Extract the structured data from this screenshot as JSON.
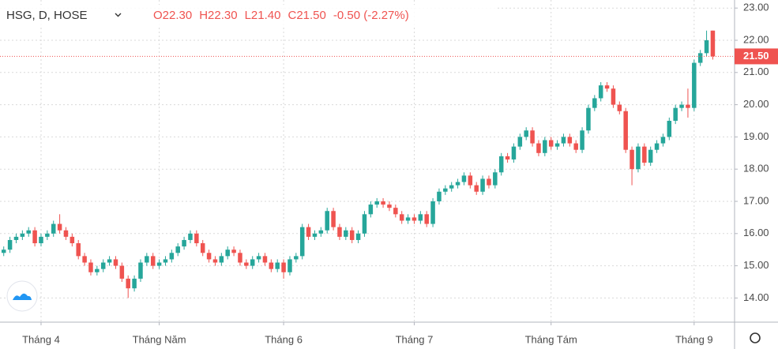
{
  "chart_data": {
    "type": "candlestick",
    "symbol": "HSG, D, HOSE",
    "legend": [
      "O22.30",
      "H22.30",
      "L21.40",
      "C21.50",
      "-0.50 (-2.27%)"
    ],
    "up_color": "#26a69a",
    "down_color": "#ef5350",
    "grid": true,
    "xlim": [
      -0.6,
      117.5
    ],
    "ylim": [
      13.25,
      23.25
    ],
    "yticks": [
      {
        "value": 14,
        "label": "14.00"
      },
      {
        "value": 15,
        "label": "15.00"
      },
      {
        "value": 16,
        "label": "16.00"
      },
      {
        "value": 17,
        "label": "17.00"
      },
      {
        "value": 18,
        "label": "18.00"
      },
      {
        "value": 19,
        "label": "19.00"
      },
      {
        "value": 20,
        "label": "20.00"
      },
      {
        "value": 21,
        "label": "21.00"
      },
      {
        "value": 22,
        "label": "22.00"
      },
      {
        "value": 23,
        "label": "23.00"
      }
    ],
    "xticks": [
      {
        "value": 6,
        "label": "Tháng 4"
      },
      {
        "value": 25,
        "label": "Tháng Năm"
      },
      {
        "value": 45,
        "label": "Tháng 6"
      },
      {
        "value": 66,
        "label": "Tháng 7"
      },
      {
        "value": 88,
        "label": "Tháng Tám"
      },
      {
        "value": 111,
        "label": "Tháng 9"
      }
    ],
    "last_price": {
      "value": 21.5,
      "label": "21.50"
    },
    "open": [
      15.4,
      15.5,
      15.8,
      15.9,
      16.0,
      16.1,
      15.7,
      15.9,
      16.0,
      16.3,
      16.1,
      15.9,
      15.7,
      15.3,
      15.1,
      14.8,
      14.9,
      15.1,
      15.2,
      15.0,
      14.6,
      14.3,
      14.6,
      15.1,
      15.3,
      15.0,
      15.1,
      15.2,
      15.4,
      15.6,
      15.8,
      16.0,
      15.7,
      15.4,
      15.2,
      15.1,
      15.3,
      15.5,
      15.4,
      15.1,
      15.0,
      15.2,
      15.3,
      15.1,
      14.9,
      15.1,
      14.8,
      15.2,
      15.3,
      16.2,
      15.9,
      16.0,
      16.1,
      16.7,
      16.2,
      15.9,
      16.1,
      15.8,
      16.0,
      16.6,
      16.9,
      17.0,
      16.9,
      16.8,
      16.6,
      16.4,
      16.5,
      16.4,
      16.6,
      16.3,
      17.0,
      17.3,
      17.4,
      17.5,
      17.6,
      17.8,
      17.5,
      17.3,
      17.7,
      17.5,
      17.9,
      18.4,
      18.3,
      18.7,
      19.0,
      19.2,
      18.8,
      18.5,
      18.9,
      18.7,
      18.8,
      19.0,
      18.8,
      18.6,
      19.2,
      19.9,
      20.2,
      20.6,
      20.5,
      20.0,
      19.8,
      18.6,
      18.0,
      18.7,
      18.2,
      18.6,
      18.8,
      19.0,
      19.5,
      19.9,
      20.0,
      19.9,
      21.3,
      21.6,
      22.3
    ],
    "high": [
      15.6,
      15.9,
      16.0,
      16.1,
      16.2,
      16.2,
      16.0,
      16.1,
      16.4,
      16.6,
      16.2,
      16.0,
      15.8,
      15.4,
      15.2,
      15.0,
      15.2,
      15.3,
      15.3,
      15.1,
      14.7,
      14.7,
      15.2,
      15.4,
      15.4,
      15.2,
      15.3,
      15.5,
      15.7,
      15.9,
      16.1,
      16.1,
      15.8,
      15.5,
      15.3,
      15.4,
      15.6,
      15.6,
      15.5,
      15.2,
      15.3,
      15.4,
      15.4,
      15.2,
      15.2,
      15.2,
      15.3,
      15.4,
      16.3,
      16.3,
      16.1,
      16.2,
      16.8,
      16.8,
      16.3,
      16.2,
      16.2,
      16.1,
      16.7,
      17.0,
      17.1,
      17.1,
      17.0,
      16.9,
      16.7,
      16.6,
      16.6,
      16.7,
      16.7,
      17.1,
      17.4,
      17.5,
      17.6,
      17.7,
      17.9,
      17.9,
      17.6,
      17.8,
      17.8,
      18.0,
      18.5,
      18.5,
      18.8,
      19.1,
      19.3,
      19.3,
      18.9,
      19.0,
      19.0,
      18.9,
      19.1,
      19.1,
      18.9,
      19.3,
      20.0,
      20.3,
      20.7,
      20.7,
      20.6,
      20.1,
      19.9,
      18.7,
      18.8,
      18.8,
      18.7,
      18.9,
      19.1,
      19.6,
      20.0,
      20.1,
      20.5,
      21.4,
      21.7,
      22.3,
      22.3
    ],
    "low": [
      15.3,
      15.4,
      15.7,
      15.8,
      15.9,
      15.6,
      15.6,
      15.8,
      15.9,
      16.0,
      15.8,
      15.6,
      15.2,
      15.0,
      14.7,
      14.7,
      14.8,
      15.0,
      14.9,
      14.5,
      14.0,
      14.2,
      14.5,
      15.0,
      14.9,
      14.9,
      15.0,
      15.1,
      15.3,
      15.5,
      15.7,
      15.6,
      15.3,
      15.1,
      15.0,
      15.0,
      15.2,
      15.3,
      15.0,
      14.9,
      14.9,
      15.1,
      15.0,
      14.8,
      14.8,
      14.6,
      14.7,
      15.1,
      15.2,
      15.8,
      15.8,
      15.9,
      16.0,
      16.1,
      15.8,
      15.8,
      15.7,
      15.7,
      15.9,
      16.5,
      16.8,
      16.8,
      16.7,
      16.5,
      16.3,
      16.3,
      16.3,
      16.3,
      16.2,
      16.2,
      16.9,
      17.2,
      17.3,
      17.4,
      17.5,
      17.4,
      17.2,
      17.2,
      17.4,
      17.4,
      17.8,
      18.2,
      18.2,
      18.6,
      18.9,
      18.7,
      18.4,
      18.4,
      18.6,
      18.6,
      18.7,
      18.7,
      18.5,
      18.5,
      19.1,
      19.8,
      20.1,
      20.4,
      19.9,
      19.7,
      18.5,
      17.5,
      17.9,
      18.1,
      18.1,
      18.5,
      18.7,
      18.9,
      19.4,
      19.8,
      19.6,
      19.8,
      21.2,
      21.5,
      21.4
    ],
    "close": [
      15.5,
      15.8,
      15.9,
      16.0,
      16.1,
      15.7,
      15.9,
      16.0,
      16.3,
      16.1,
      15.9,
      15.7,
      15.3,
      15.1,
      14.8,
      14.9,
      15.1,
      15.2,
      15.0,
      14.6,
      14.3,
      14.6,
      15.1,
      15.3,
      15.0,
      15.1,
      15.2,
      15.4,
      15.6,
      15.8,
      16.0,
      15.7,
      15.4,
      15.2,
      15.1,
      15.3,
      15.5,
      15.4,
      15.1,
      15.0,
      15.2,
      15.3,
      15.1,
      14.9,
      15.1,
      14.8,
      15.2,
      15.3,
      16.2,
      15.9,
      16.0,
      16.1,
      16.7,
      16.2,
      15.9,
      16.1,
      15.8,
      16.0,
      16.6,
      16.9,
      17.0,
      16.9,
      16.8,
      16.6,
      16.4,
      16.5,
      16.4,
      16.6,
      16.3,
      17.0,
      17.3,
      17.4,
      17.5,
      17.6,
      17.8,
      17.5,
      17.3,
      17.7,
      17.5,
      17.9,
      18.4,
      18.3,
      18.7,
      19.0,
      19.2,
      18.8,
      18.5,
      18.9,
      18.7,
      18.8,
      19.0,
      18.8,
      18.6,
      19.2,
      19.9,
      20.2,
      20.6,
      20.5,
      20.0,
      19.8,
      18.6,
      18.0,
      18.7,
      18.2,
      18.6,
      18.8,
      19.0,
      19.5,
      19.9,
      20.0,
      19.9,
      21.3,
      21.6,
      22.0,
      21.5
    ]
  }
}
